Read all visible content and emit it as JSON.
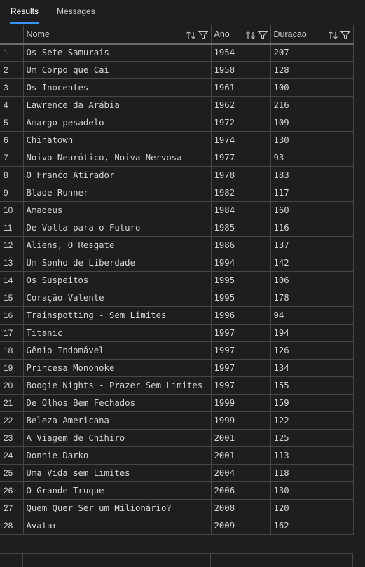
{
  "tabs": [
    {
      "label": "Results",
      "active": true
    },
    {
      "label": "Messages",
      "active": false
    }
  ],
  "grid": {
    "columns": [
      {
        "label": "",
        "key": "rn"
      },
      {
        "label": "Nome",
        "key": "nome"
      },
      {
        "label": "Ano",
        "key": "ano"
      },
      {
        "label": "Duracao",
        "key": "duracao"
      }
    ],
    "header_icons": [
      "sort-icon",
      "filter-icon"
    ],
    "rows": [
      [
        "1",
        "Os Sete Samurais",
        "1954",
        "207"
      ],
      [
        "2",
        "Um Corpo que Cai",
        "1958",
        "128"
      ],
      [
        "3",
        "Os Inocentes",
        "1961",
        "100"
      ],
      [
        "4",
        "Lawrence da Arábia",
        "1962",
        "216"
      ],
      [
        "5",
        "Amargo pesadelo",
        "1972",
        "109"
      ],
      [
        "6",
        "Chinatown",
        "1974",
        "130"
      ],
      [
        "7",
        "Noivo Neurótico, Noiva Nervosa",
        "1977",
        "93"
      ],
      [
        "8",
        "O Franco Atirador",
        "1978",
        "183"
      ],
      [
        "9",
        "Blade Runner",
        "1982",
        "117"
      ],
      [
        "10",
        "Amadeus",
        "1984",
        "160"
      ],
      [
        "11",
        "De Volta para o Futuro",
        "1985",
        "116"
      ],
      [
        "12",
        "Aliens, O Resgate",
        "1986",
        "137"
      ],
      [
        "13",
        "Um Sonho de Liberdade",
        "1994",
        "142"
      ],
      [
        "14",
        "Os Suspeitos",
        "1995",
        "106"
      ],
      [
        "15",
        "Coração Valente",
        "1995",
        "178"
      ],
      [
        "16",
        "Trainspotting - Sem Limites",
        "1996",
        "94"
      ],
      [
        "17",
        "Titanic",
        "1997",
        "194"
      ],
      [
        "18",
        "Gênio Indomável",
        "1997",
        "126"
      ],
      [
        "19",
        "Princesa Mononoke",
        "1997",
        "134"
      ],
      [
        "20",
        "Boogie Nights - Prazer Sem Limites",
        "1997",
        "155"
      ],
      [
        "21",
        "De Olhos Bem Fechados",
        "1999",
        "159"
      ],
      [
        "22",
        "Beleza Americana",
        "1999",
        "122"
      ],
      [
        "23",
        "A Viagem de Chihiro",
        "2001",
        "125"
      ],
      [
        "24",
        "Donnie Darko",
        "2001",
        "113"
      ],
      [
        "25",
        "Uma Vida sem Limites",
        "2004",
        "118"
      ],
      [
        "26",
        "O Grande Truque",
        "2006",
        "130"
      ],
      [
        "27",
        "Quem Quer Ser um Milionário?",
        "2008",
        "120"
      ],
      [
        "28",
        "Avatar",
        "2009",
        "162"
      ]
    ]
  },
  "colors": {
    "background": "#1e1e1e",
    "grid_line": "#474747",
    "text": "#d4d4d4",
    "tab_accent": "#3794ff"
  }
}
